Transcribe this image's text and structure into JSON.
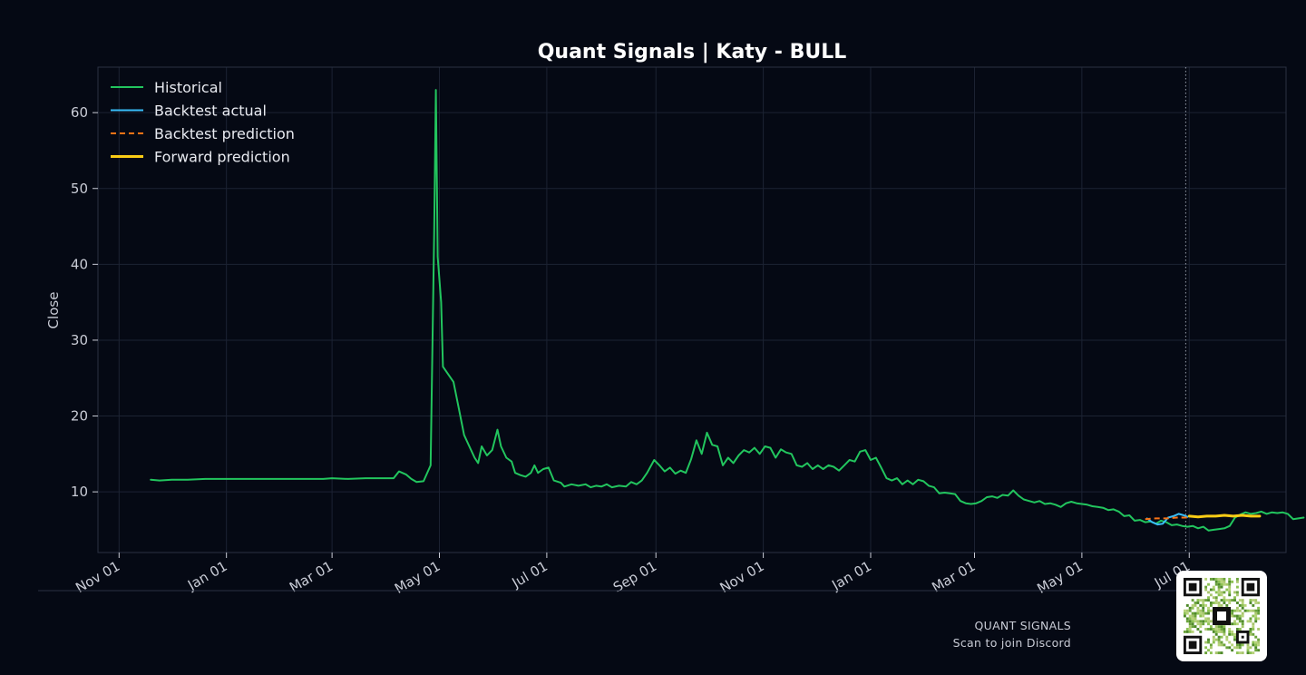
{
  "chart_data": {
    "type": "line",
    "title": "Quant Signals | Katy - BULL",
    "xlabel": "",
    "ylabel": "Close",
    "x_ticks": [
      "2023-11-01",
      "2024-01-01",
      "2024-03-01",
      "2024-05-01",
      "2024-07-01",
      "2024-09-01",
      "2024-11-01",
      "2025-01-01",
      "2025-03-01",
      "2025-05-01",
      "2025-07-01"
    ],
    "x_tick_labels": [
      "Nov 01",
      "Jan 01",
      "Mar 01",
      "May 01",
      "Jul 01",
      "Sep 01",
      "Nov 01",
      "Jan 01",
      "Mar 01",
      "May 01",
      "Jul 01"
    ],
    "y_ticks": [
      10,
      20,
      30,
      40,
      50,
      60
    ],
    "xlim": [
      "2023-10-20",
      "2025-08-25"
    ],
    "ylim": [
      2,
      66
    ],
    "grid": true,
    "legend_position": "top-left",
    "cutoff_date": "2025-06-29",
    "series": [
      {
        "name": "Historical",
        "color": "#22c55e",
        "style": "solid",
        "points": [
          [
            "2023-11-19",
            11.6
          ],
          [
            "2023-11-24",
            11.5
          ],
          [
            "2023-12-01",
            11.6
          ],
          [
            "2023-12-10",
            11.6
          ],
          [
            "2023-12-20",
            11.7
          ],
          [
            "2024-01-05",
            11.7
          ],
          [
            "2024-02-01",
            11.7
          ],
          [
            "2024-02-25",
            11.7
          ],
          [
            "2024-03-01",
            11.8
          ],
          [
            "2024-03-10",
            11.7
          ],
          [
            "2024-03-20",
            11.8
          ],
          [
            "2024-03-31",
            11.8
          ],
          [
            "2024-04-05",
            11.8
          ],
          [
            "2024-04-08",
            12.7
          ],
          [
            "2024-04-12",
            12.3
          ],
          [
            "2024-04-15",
            11.7
          ],
          [
            "2024-04-18",
            11.3
          ],
          [
            "2024-04-22",
            11.4
          ],
          [
            "2024-04-26",
            13.5
          ],
          [
            "2024-04-28",
            44.0
          ],
          [
            "2024-04-29",
            63.0
          ],
          [
            "2024-04-30",
            41.0
          ],
          [
            "2024-05-02",
            35.0
          ],
          [
            "2024-05-03",
            26.5
          ],
          [
            "2024-05-06",
            25.5
          ],
          [
            "2024-05-09",
            24.5
          ],
          [
            "2024-05-12",
            21.0
          ],
          [
            "2024-05-15",
            17.5
          ],
          [
            "2024-05-18",
            16.0
          ],
          [
            "2024-05-21",
            14.5
          ],
          [
            "2024-05-23",
            13.8
          ],
          [
            "2024-05-25",
            16.0
          ],
          [
            "2024-05-28",
            14.8
          ],
          [
            "2024-05-31",
            15.5
          ],
          [
            "2024-06-03",
            18.2
          ],
          [
            "2024-06-05",
            16.0
          ],
          [
            "2024-06-08",
            14.5
          ],
          [
            "2024-06-11",
            14.0
          ],
          [
            "2024-06-13",
            12.5
          ],
          [
            "2024-06-16",
            12.2
          ],
          [
            "2024-06-19",
            12.0
          ],
          [
            "2024-06-22",
            12.5
          ],
          [
            "2024-06-24",
            13.5
          ],
          [
            "2024-06-26",
            12.5
          ],
          [
            "2024-06-29",
            13.0
          ],
          [
            "2024-07-02",
            13.2
          ],
          [
            "2024-07-05",
            11.5
          ],
          [
            "2024-07-09",
            11.2
          ],
          [
            "2024-07-11",
            10.7
          ],
          [
            "2024-07-15",
            11.0
          ],
          [
            "2024-07-19",
            10.8
          ],
          [
            "2024-07-23",
            11.0
          ],
          [
            "2024-07-26",
            10.6
          ],
          [
            "2024-07-29",
            10.8
          ],
          [
            "2024-08-01",
            10.7
          ],
          [
            "2024-08-04",
            11.0
          ],
          [
            "2024-08-07",
            10.6
          ],
          [
            "2024-08-11",
            10.8
          ],
          [
            "2024-08-15",
            10.7
          ],
          [
            "2024-08-18",
            11.3
          ],
          [
            "2024-08-21",
            11.0
          ],
          [
            "2024-08-24",
            11.5
          ],
          [
            "2024-08-27",
            12.5
          ],
          [
            "2024-08-31",
            14.2
          ],
          [
            "2024-09-03",
            13.5
          ],
          [
            "2024-09-06",
            12.7
          ],
          [
            "2024-09-09",
            13.2
          ],
          [
            "2024-09-12",
            12.4
          ],
          [
            "2024-09-15",
            12.8
          ],
          [
            "2024-09-18",
            12.5
          ],
          [
            "2024-09-21",
            14.3
          ],
          [
            "2024-09-24",
            16.8
          ],
          [
            "2024-09-27",
            15.0
          ],
          [
            "2024-09-30",
            17.8
          ],
          [
            "2024-10-03",
            16.2
          ],
          [
            "2024-10-06",
            16.0
          ],
          [
            "2024-10-09",
            13.5
          ],
          [
            "2024-10-12",
            14.5
          ],
          [
            "2024-10-15",
            13.8
          ],
          [
            "2024-10-18",
            14.8
          ],
          [
            "2024-10-21",
            15.5
          ],
          [
            "2024-10-24",
            15.2
          ],
          [
            "2024-10-27",
            15.8
          ],
          [
            "2024-10-30",
            15.0
          ],
          [
            "2024-11-02",
            16.0
          ],
          [
            "2024-11-05",
            15.8
          ],
          [
            "2024-11-08",
            14.5
          ],
          [
            "2024-11-11",
            15.6
          ],
          [
            "2024-11-14",
            15.2
          ],
          [
            "2024-11-17",
            15.0
          ],
          [
            "2024-11-20",
            13.5
          ],
          [
            "2024-11-23",
            13.3
          ],
          [
            "2024-11-26",
            13.8
          ],
          [
            "2024-11-29",
            13.0
          ],
          [
            "2024-12-02",
            13.5
          ],
          [
            "2024-12-05",
            13.0
          ],
          [
            "2024-12-08",
            13.5
          ],
          [
            "2024-12-11",
            13.3
          ],
          [
            "2024-12-14",
            12.8
          ],
          [
            "2024-12-17",
            13.5
          ],
          [
            "2024-12-20",
            14.2
          ],
          [
            "2024-12-23",
            14.0
          ],
          [
            "2024-12-26",
            15.3
          ],
          [
            "2024-12-29",
            15.5
          ],
          [
            "2025-01-01",
            14.2
          ],
          [
            "2025-01-04",
            14.5
          ],
          [
            "2025-01-07",
            13.2
          ],
          [
            "2025-01-10",
            11.8
          ],
          [
            "2025-01-13",
            11.5
          ],
          [
            "2025-01-16",
            11.8
          ],
          [
            "2025-01-19",
            11.0
          ],
          [
            "2025-01-22",
            11.5
          ],
          [
            "2025-01-25",
            11.0
          ],
          [
            "2025-01-28",
            11.6
          ],
          [
            "2025-01-31",
            11.4
          ],
          [
            "2025-02-03",
            10.8
          ],
          [
            "2025-02-06",
            10.6
          ],
          [
            "2025-02-09",
            9.8
          ],
          [
            "2025-02-12",
            9.9
          ],
          [
            "2025-02-15",
            9.8
          ],
          [
            "2025-02-18",
            9.7
          ],
          [
            "2025-02-21",
            8.8
          ],
          [
            "2025-02-24",
            8.5
          ],
          [
            "2025-02-27",
            8.4
          ],
          [
            "2025-03-02",
            8.5
          ],
          [
            "2025-03-05",
            8.8
          ],
          [
            "2025-03-08",
            9.3
          ],
          [
            "2025-03-11",
            9.4
          ],
          [
            "2025-03-14",
            9.2
          ],
          [
            "2025-03-17",
            9.6
          ],
          [
            "2025-03-20",
            9.5
          ],
          [
            "2025-03-23",
            10.2
          ],
          [
            "2025-03-26",
            9.5
          ],
          [
            "2025-03-29",
            9.0
          ],
          [
            "2025-04-01",
            8.8
          ],
          [
            "2025-04-04",
            8.6
          ],
          [
            "2025-04-07",
            8.8
          ],
          [
            "2025-04-10",
            8.4
          ],
          [
            "2025-04-13",
            8.5
          ],
          [
            "2025-04-16",
            8.3
          ],
          [
            "2025-04-19",
            8.0
          ],
          [
            "2025-04-22",
            8.5
          ],
          [
            "2025-04-25",
            8.7
          ],
          [
            "2025-04-28",
            8.5
          ],
          [
            "2025-05-01",
            8.4
          ],
          [
            "2025-05-04",
            8.3
          ],
          [
            "2025-05-07",
            8.1
          ],
          [
            "2025-05-10",
            8.0
          ],
          [
            "2025-05-13",
            7.9
          ],
          [
            "2025-05-16",
            7.6
          ],
          [
            "2025-05-19",
            7.7
          ],
          [
            "2025-05-22",
            7.4
          ],
          [
            "2025-05-25",
            6.8
          ],
          [
            "2025-05-28",
            6.9
          ],
          [
            "2025-05-31",
            6.2
          ],
          [
            "2025-06-03",
            6.3
          ],
          [
            "2025-06-06",
            6.0
          ],
          [
            "2025-06-09",
            6.1
          ],
          [
            "2025-06-12",
            5.8
          ],
          [
            "2025-06-15",
            6.2
          ],
          [
            "2025-06-18",
            6.0
          ],
          [
            "2025-06-21",
            5.6
          ],
          [
            "2025-06-24",
            5.7
          ],
          [
            "2025-06-27",
            5.5
          ],
          [
            "2025-06-30",
            5.4
          ],
          [
            "2025-07-03",
            5.5
          ],
          [
            "2025-07-06",
            5.2
          ],
          [
            "2025-07-09",
            5.4
          ],
          [
            "2025-07-12",
            4.9
          ],
          [
            "2025-07-15",
            5.0
          ],
          [
            "2025-07-18",
            5.1
          ],
          [
            "2025-07-21",
            5.2
          ],
          [
            "2025-07-24",
            5.5
          ],
          [
            "2025-07-27",
            6.6
          ],
          [
            "2025-07-30",
            7.0
          ],
          [
            "2025-08-02",
            7.3
          ],
          [
            "2025-08-05",
            7.1
          ],
          [
            "2025-08-08",
            7.2
          ],
          [
            "2025-08-11",
            7.4
          ],
          [
            "2025-08-14",
            7.1
          ],
          [
            "2025-08-17",
            7.3
          ],
          [
            "2025-08-20",
            7.2
          ],
          [
            "2025-08-23",
            7.3
          ],
          [
            "2025-08-26",
            7.1
          ],
          [
            "2025-08-29",
            6.4
          ],
          [
            "2025-09-01",
            6.5
          ],
          [
            "2025-09-04",
            6.6
          ]
        ]
      },
      {
        "name": "Backtest actual",
        "color": "#38bdf8",
        "style": "solid",
        "points": [
          [
            "2025-06-07",
            6.5
          ],
          [
            "2025-06-10",
            6.0
          ],
          [
            "2025-06-13",
            5.7
          ],
          [
            "2025-06-16",
            5.8
          ],
          [
            "2025-06-19",
            6.6
          ],
          [
            "2025-06-22",
            6.8
          ],
          [
            "2025-06-25",
            7.1
          ],
          [
            "2025-06-28",
            6.9
          ],
          [
            "2025-06-30",
            6.7
          ]
        ]
      },
      {
        "name": "Backtest prediction",
        "color": "#f97316",
        "style": "dashed",
        "points": [
          [
            "2025-06-06",
            6.4
          ],
          [
            "2025-06-12",
            6.5
          ],
          [
            "2025-06-18",
            6.5
          ],
          [
            "2025-06-24",
            6.6
          ],
          [
            "2025-06-30",
            6.6
          ]
        ]
      },
      {
        "name": "Forward prediction",
        "color": "#facc15",
        "style": "solid",
        "points": [
          [
            "2025-07-01",
            6.8
          ],
          [
            "2025-07-06",
            6.7
          ],
          [
            "2025-07-11",
            6.8
          ],
          [
            "2025-07-16",
            6.8
          ],
          [
            "2025-07-21",
            6.9
          ],
          [
            "2025-07-26",
            6.8
          ],
          [
            "2025-07-31",
            6.9
          ],
          [
            "2025-08-05",
            6.8
          ],
          [
            "2025-08-10",
            6.8
          ]
        ]
      }
    ]
  },
  "footer": {
    "brand": "QUANT SIGNALS",
    "cta": "Scan to join Discord"
  }
}
